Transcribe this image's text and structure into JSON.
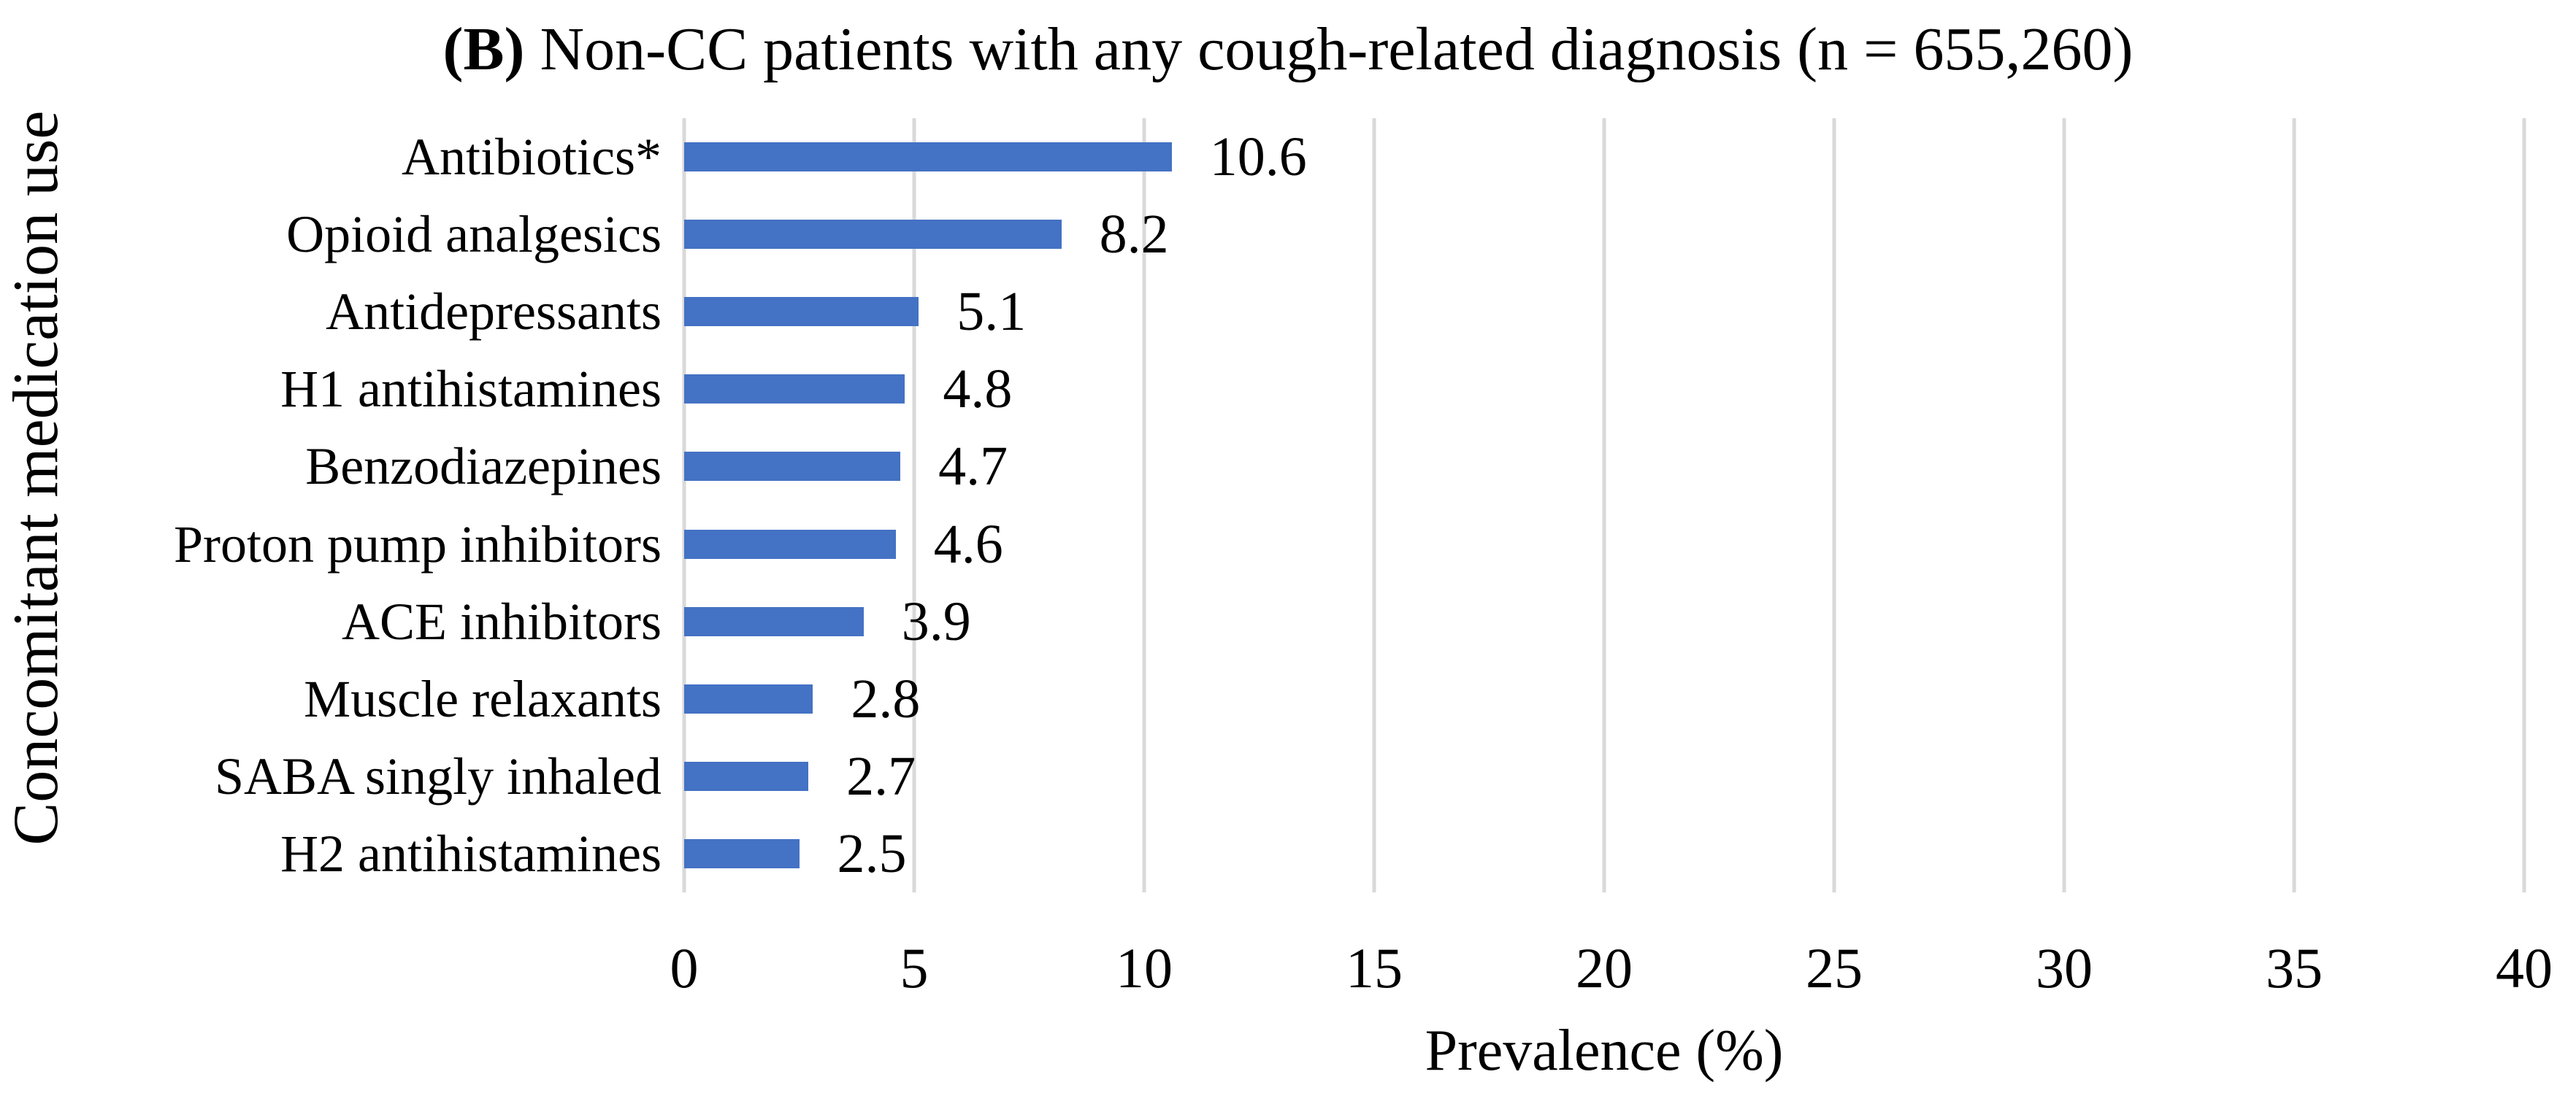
{
  "chart_data": {
    "type": "bar",
    "orientation": "horizontal",
    "title": "(B) Non-CC patients with any cough-related diagnosis (n = 655,260)",
    "title_prefix": "(B)",
    "title_rest": " Non-CC patients with any cough-related diagnosis (n = 655,260)",
    "categories": [
      "Antibiotics*",
      "Opioid analgesics",
      "Antidepressants",
      "H1 antihistamines",
      "Benzodiazepines",
      "Proton pump inhibitors",
      "ACE inhibitors",
      "Muscle relaxants",
      "SABA singly inhaled",
      "H2 antihistamines"
    ],
    "values": [
      10.6,
      8.2,
      5.1,
      4.8,
      4.7,
      4.6,
      3.9,
      2.8,
      2.7,
      2.5
    ],
    "value_labels": [
      "10.6",
      "8.2",
      "5.1",
      "4.8",
      "4.7",
      "4.6",
      "3.9",
      "2.8",
      "2.7",
      "2.5"
    ],
    "xlabel": "Prevalence (%)",
    "ylabel": "Concomitant medication use",
    "xlim": [
      0,
      40
    ],
    "x_ticks": [
      0,
      5,
      10,
      15,
      20,
      25,
      30,
      35,
      40
    ],
    "grid": "vertical-only",
    "legend": "none",
    "bar_color": "#4472C4",
    "gridline_color": "#D9D9D9",
    "text_color": "#000000"
  }
}
